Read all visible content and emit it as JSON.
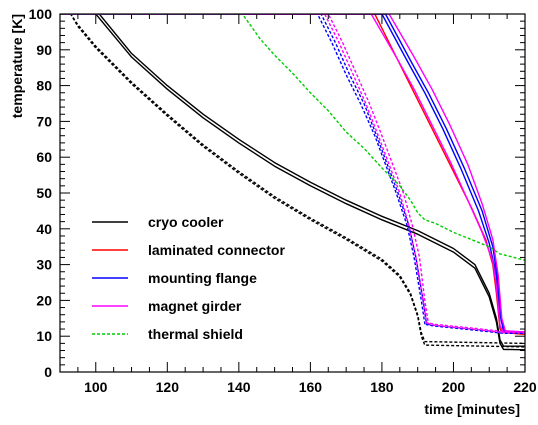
{
  "chart_data": {
    "type": "line",
    "xlabel": "time [minutes]",
    "ylabel": "temperature [K]",
    "xlim": [
      90,
      220
    ],
    "ylim": [
      0,
      100
    ],
    "x_ticks": [
      100,
      120,
      140,
      160,
      180,
      200,
      220
    ],
    "y_ticks": [
      0,
      10,
      20,
      30,
      40,
      50,
      60,
      70,
      80,
      90,
      100
    ],
    "legend_position": "lower-left",
    "legend": [
      {
        "label": "cryo cooler",
        "color": "#000000",
        "dash": "solid"
      },
      {
        "label": "laminated connector",
        "color": "#ff0000",
        "dash": "solid"
      },
      {
        "label": "mounting flange",
        "color": "#0000ff",
        "dash": "solid"
      },
      {
        "label": "magnet girder",
        "color": "#ff00ff",
        "dash": "solid"
      },
      {
        "label": "thermal shield",
        "color": "#00cc00",
        "dash": "dashed"
      }
    ],
    "series": [
      {
        "name": "cryo cooler",
        "color": "#000000",
        "dash": "solid",
        "points": [
          [
            90,
            100
          ],
          [
            101,
            100
          ],
          [
            110,
            89
          ],
          [
            120,
            80
          ],
          [
            130,
            72
          ],
          [
            140,
            65
          ],
          [
            150,
            58.5
          ],
          [
            160,
            53
          ],
          [
            170,
            48
          ],
          [
            180,
            43.5
          ],
          [
            190,
            39.5
          ],
          [
            200,
            34.5
          ],
          [
            206,
            30
          ],
          [
            210,
            22
          ],
          [
            212,
            15
          ],
          [
            213,
            9
          ],
          [
            214,
            7.2
          ],
          [
            220,
            7.2
          ]
        ]
      },
      {
        "name": "cryo cooler",
        "color": "#000000",
        "dash": "solid",
        "points": [
          [
            90,
            100
          ],
          [
            100,
            100
          ],
          [
            110,
            88
          ],
          [
            120,
            79
          ],
          [
            130,
            71
          ],
          [
            140,
            64
          ],
          [
            150,
            57.5
          ],
          [
            160,
            52
          ],
          [
            170,
            47
          ],
          [
            180,
            42.5
          ],
          [
            190,
            38.5
          ],
          [
            200,
            33.5
          ],
          [
            206,
            29
          ],
          [
            210,
            21
          ],
          [
            212,
            14
          ],
          [
            213,
            8
          ],
          [
            214,
            6.3
          ],
          [
            220,
            6.2
          ]
        ]
      },
      {
        "name": "cryo cooler",
        "color": "#000000",
        "dash": "dashed",
        "points": [
          [
            90,
            100
          ],
          [
            93,
            100
          ],
          [
            95,
            97
          ],
          [
            100,
            91
          ],
          [
            110,
            81
          ],
          [
            120,
            72
          ],
          [
            130,
            63.5
          ],
          [
            140,
            56
          ],
          [
            150,
            49
          ],
          [
            160,
            43
          ],
          [
            170,
            37.5
          ],
          [
            180,
            31.5
          ],
          [
            185,
            27
          ],
          [
            188,
            22
          ],
          [
            190,
            16
          ],
          [
            191,
            11
          ],
          [
            192,
            8.5
          ],
          [
            220,
            8
          ]
        ]
      },
      {
        "name": "cryo cooler",
        "color": "#000000",
        "dash": "dashed",
        "points": [
          [
            90,
            100
          ],
          [
            93,
            100
          ],
          [
            95,
            96.5
          ],
          [
            100,
            90.5
          ],
          [
            110,
            80.5
          ],
          [
            120,
            71.5
          ],
          [
            130,
            63
          ],
          [
            140,
            55.5
          ],
          [
            150,
            48.5
          ],
          [
            160,
            42.5
          ],
          [
            170,
            37
          ],
          [
            180,
            31
          ],
          [
            185,
            26.5
          ],
          [
            188,
            21.5
          ],
          [
            190,
            15.5
          ],
          [
            191,
            10
          ],
          [
            192,
            7.5
          ],
          [
            220,
            7
          ]
        ]
      },
      {
        "name": "laminated connector",
        "color": "#ff0000",
        "dash": "solid",
        "points": [
          [
            90,
            100
          ],
          [
            178,
            100
          ],
          [
            185,
            86
          ],
          [
            190,
            76
          ],
          [
            195,
            66
          ],
          [
            200,
            56
          ],
          [
            205,
            46
          ],
          [
            209,
            37
          ],
          [
            211,
            30
          ],
          [
            212,
            22
          ],
          [
            213,
            12
          ],
          [
            214,
            11
          ],
          [
            220,
            10.5
          ]
        ]
      },
      {
        "name": "mounting flange",
        "color": "#0000ff",
        "dash": "solid",
        "points": [
          [
            90,
            100
          ],
          [
            180,
            100
          ],
          [
            187,
            87
          ],
          [
            192,
            78
          ],
          [
            197,
            68
          ],
          [
            202,
            57
          ],
          [
            207,
            45
          ],
          [
            210,
            36
          ],
          [
            212,
            27
          ],
          [
            213,
            16
          ],
          [
            214,
            11.5
          ],
          [
            220,
            11
          ]
        ]
      },
      {
        "name": "mounting flange",
        "color": "#0000ff",
        "dash": "solid",
        "points": [
          [
            90,
            100
          ],
          [
            181,
            100
          ],
          [
            188,
            87
          ],
          [
            193,
            78
          ],
          [
            198,
            68
          ],
          [
            203,
            57
          ],
          [
            208,
            45
          ],
          [
            211,
            35
          ],
          [
            212.5,
            25
          ],
          [
            213.5,
            14
          ],
          [
            214.5,
            11.3
          ],
          [
            220,
            11
          ]
        ]
      },
      {
        "name": "magnet girder",
        "color": "#ff00ff",
        "dash": "solid",
        "points": [
          [
            90,
            100
          ],
          [
            177,
            100
          ],
          [
            184,
            88
          ],
          [
            189,
            79
          ],
          [
            194,
            69
          ],
          [
            199,
            59
          ],
          [
            204,
            48
          ],
          [
            208,
            39
          ],
          [
            211,
            31
          ],
          [
            212,
            24
          ],
          [
            213,
            13
          ],
          [
            214,
            11.2
          ],
          [
            220,
            11
          ]
        ]
      },
      {
        "name": "magnet girder",
        "color": "#ff00ff",
        "dash": "solid",
        "points": [
          [
            90,
            100
          ],
          [
            182,
            100
          ],
          [
            189,
            88
          ],
          [
            194,
            79
          ],
          [
            199,
            69
          ],
          [
            204,
            58
          ],
          [
            208,
            47
          ],
          [
            211,
            37
          ],
          [
            212.5,
            27
          ],
          [
            213.5,
            15
          ],
          [
            214.5,
            11.5
          ],
          [
            220,
            11.2
          ]
        ]
      },
      {
        "name": "mounting flange",
        "color": "#0000ff",
        "dash": "dashed",
        "points": [
          [
            90,
            100
          ],
          [
            162,
            100
          ],
          [
            166,
            92
          ],
          [
            170,
            83
          ],
          [
            174,
            75
          ],
          [
            178,
            66
          ],
          [
            181,
            58
          ],
          [
            184,
            50
          ],
          [
            187,
            41
          ],
          [
            189,
            32
          ],
          [
            191,
            20
          ],
          [
            192,
            13.5
          ],
          [
            195,
            13
          ],
          [
            205,
            12
          ],
          [
            214,
            11
          ],
          [
            220,
            11
          ]
        ]
      },
      {
        "name": "mounting flange",
        "color": "#0000ff",
        "dash": "dashed",
        "points": [
          [
            90,
            100
          ],
          [
            163,
            100
          ],
          [
            167,
            92
          ],
          [
            171,
            83
          ],
          [
            175,
            75
          ],
          [
            178.5,
            66
          ],
          [
            181.5,
            58
          ],
          [
            184.5,
            50
          ],
          [
            187.5,
            41
          ],
          [
            189.5,
            32
          ],
          [
            191.5,
            20
          ],
          [
            192.5,
            13.2
          ],
          [
            195,
            12.8
          ],
          [
            205,
            11.8
          ],
          [
            214,
            10.8
          ],
          [
            220,
            10.8
          ]
        ]
      },
      {
        "name": "magnet girder",
        "color": "#ff00ff",
        "dash": "dashed",
        "points": [
          [
            90,
            100
          ],
          [
            164,
            100
          ],
          [
            168,
            92
          ],
          [
            172,
            83
          ],
          [
            175.5,
            75
          ],
          [
            179,
            66
          ],
          [
            182,
            58
          ],
          [
            185,
            50
          ],
          [
            187.5,
            41
          ],
          [
            189.5,
            32
          ],
          [
            191.5,
            20
          ],
          [
            192.5,
            13.8
          ],
          [
            195,
            13.3
          ],
          [
            205,
            12.3
          ],
          [
            214,
            11.3
          ],
          [
            220,
            11.2
          ]
        ]
      },
      {
        "name": "magnet girder",
        "color": "#ff00ff",
        "dash": "dashed",
        "points": [
          [
            90,
            100
          ],
          [
            165,
            100
          ],
          [
            169,
            92
          ],
          [
            173,
            83
          ],
          [
            176.5,
            75
          ],
          [
            180,
            66
          ],
          [
            183,
            58
          ],
          [
            186,
            50
          ],
          [
            188.5,
            41
          ],
          [
            190.5,
            32
          ],
          [
            192,
            20
          ],
          [
            193,
            13.5
          ],
          [
            195,
            13
          ],
          [
            205,
            12
          ],
          [
            214,
            11
          ],
          [
            220,
            11
          ]
        ]
      },
      {
        "name": "thermal shield",
        "color": "#00cc00",
        "dash": "dashed",
        "points": [
          [
            90,
            100
          ],
          [
            141,
            100
          ],
          [
            146,
            93
          ],
          [
            150,
            88.5
          ],
          [
            155,
            83.5
          ],
          [
            160,
            78
          ],
          [
            165,
            73
          ],
          [
            170,
            67
          ],
          [
            175,
            62.5
          ],
          [
            180,
            57
          ],
          [
            185,
            52
          ],
          [
            188,
            48
          ],
          [
            190,
            44.5
          ],
          [
            192,
            42.5
          ],
          [
            195,
            41.5
          ],
          [
            200,
            39
          ],
          [
            205,
            37
          ],
          [
            210,
            35
          ],
          [
            213,
            33
          ],
          [
            215,
            32.5
          ],
          [
            220,
            31.2
          ]
        ]
      }
    ]
  }
}
